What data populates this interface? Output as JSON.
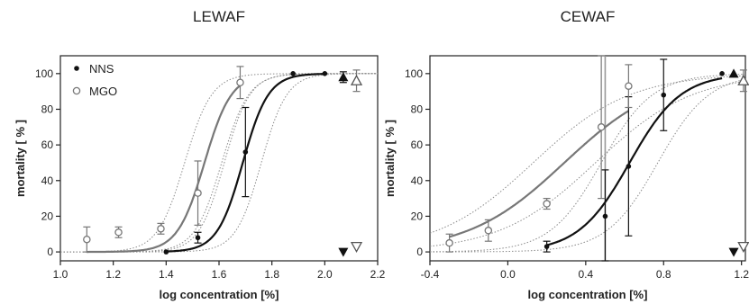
{
  "chart_data": [
    {
      "type": "scatter",
      "title": "LEWAF",
      "xlabel": "log concentration [%]",
      "ylabel": "mortality [ % ]",
      "xlim": [
        1.0,
        2.2
      ],
      "ylim": [
        -5,
        110
      ],
      "xticks": [
        "1.0",
        "1.2",
        "1.4",
        "1.6",
        "1.8",
        "2.0",
        "2.2"
      ],
      "yticks": [
        "0",
        "20",
        "40",
        "60",
        "80",
        "100"
      ],
      "legend": {
        "placement": "top-left",
        "entries": [
          "NNS",
          "MGO"
        ]
      },
      "series": [
        {
          "name": "NNS",
          "marker": "filled-circle",
          "color": "#111111",
          "points": [
            {
              "x": 1.4,
              "y": 0
            },
            {
              "x": 1.52,
              "y": 8,
              "err": 3
            },
            {
              "x": 1.7,
              "y": 56,
              "err": 25
            },
            {
              "x": 1.88,
              "y": 100
            },
            {
              "x": 2.0,
              "y": 100
            }
          ],
          "fit": {
            "bottom": 0,
            "top": 100,
            "logEC50": 1.69,
            "hill": 9,
            "xrange": [
              1.4,
              2.0
            ]
          },
          "ci": [
            {
              "bottom": 0,
              "top": 100,
              "logEC50": 1.62,
              "hill": 9
            },
            {
              "bottom": 0,
              "top": 100,
              "logEC50": 1.76,
              "hill": 9
            }
          ],
          "reference": {
            "marker": "filled-triangle-up",
            "x": 2.07,
            "y": 98,
            "err": 3
          },
          "control": {
            "marker": "filled-triangle-down",
            "x": 2.07,
            "y": 0
          }
        },
        {
          "name": "MGO",
          "marker": "open-circle",
          "color": "#777777",
          "points": [
            {
              "x": 1.1,
              "y": 7,
              "err": 7
            },
            {
              "x": 1.22,
              "y": 11,
              "err": 3
            },
            {
              "x": 1.38,
              "y": 13,
              "err": 3
            },
            {
              "x": 1.52,
              "y": 33,
              "err": 18
            },
            {
              "x": 1.68,
              "y": 95,
              "err": 9
            }
          ],
          "fit": {
            "bottom": 0,
            "top": 100,
            "logEC50": 1.545,
            "hill": 8.5,
            "xrange": [
              1.1,
              1.69
            ]
          },
          "ci": [
            {
              "bottom": 0,
              "top": 100,
              "logEC50": 1.47,
              "hill": 8.5
            },
            {
              "bottom": 0,
              "top": 100,
              "logEC50": 1.61,
              "hill": 8.5
            }
          ],
          "reference": {
            "marker": "open-triangle-up",
            "x": 2.12,
            "y": 96,
            "err": 6
          },
          "control": {
            "marker": "open-triangle-down",
            "x": 2.12,
            "y": 3
          }
        }
      ]
    },
    {
      "type": "scatter",
      "title": "CEWAF",
      "xlabel": "log concentration [%]",
      "ylabel": "mortality [ % ]",
      "xlim": [
        -0.4,
        1.22
      ],
      "ylim": [
        -5,
        110
      ],
      "xticks": [
        "-0.4",
        "0.0",
        "0.4",
        "0.8",
        "1.2"
      ],
      "yticks": [
        "0",
        "20",
        "40",
        "60",
        "80",
        "100"
      ],
      "vline": {
        "x": 0.5
      },
      "series": [
        {
          "name": "NNS",
          "marker": "filled-circle",
          "color": "#111111",
          "points": [
            {
              "x": 0.2,
              "y": 3,
              "err": 3
            },
            {
              "x": 0.5,
              "y": 20,
              "err": 26
            },
            {
              "x": 0.62,
              "y": 48,
              "err": 39
            },
            {
              "x": 0.8,
              "y": 88,
              "err": 20
            },
            {
              "x": 1.1,
              "y": 100
            }
          ],
          "fit": {
            "bottom": 0,
            "top": 100,
            "logEC50": 0.625,
            "hill": 3.3,
            "xrange": [
              0.2,
              1.1
            ]
          },
          "ci": [
            {
              "bottom": 0,
              "top": 100,
              "logEC50": 0.48,
              "hill": 3.3
            },
            {
              "bottom": 0,
              "top": 100,
              "logEC50": 0.77,
              "hill": 3.3
            }
          ],
          "reference": {
            "marker": "filled-triangle-up",
            "x": 1.16,
            "y": 100
          },
          "control": {
            "marker": "filled-triangle-down",
            "x": 1.16,
            "y": 0
          }
        },
        {
          "name": "MGO",
          "marker": "open-circle",
          "color": "#777777",
          "points": [
            {
              "x": -0.3,
              "y": 5,
              "err": 5
            },
            {
              "x": -0.1,
              "y": 12,
              "err": 6
            },
            {
              "x": 0.2,
              "y": 27,
              "err": 3
            },
            {
              "x": 0.48,
              "y": 70,
              "err": 40
            },
            {
              "x": 0.62,
              "y": 93,
              "err": 12
            }
          ],
          "fit": {
            "bottom": 0,
            "top": 100,
            "logEC50": 0.29,
            "hill": 1.75,
            "xrange": [
              -0.3,
              0.62
            ]
          },
          "ci": [
            {
              "bottom": 0,
              "top": 100,
              "logEC50": 0.13,
              "hill": 1.75
            },
            {
              "bottom": 0,
              "top": 100,
              "logEC50": 0.45,
              "hill": 1.75
            }
          ],
          "reference": {
            "marker": "open-triangle-up",
            "x": 1.21,
            "y": 96,
            "err": 6
          },
          "control": {
            "marker": "open-triangle-down",
            "x": 1.21,
            "y": 3
          }
        }
      ]
    }
  ]
}
